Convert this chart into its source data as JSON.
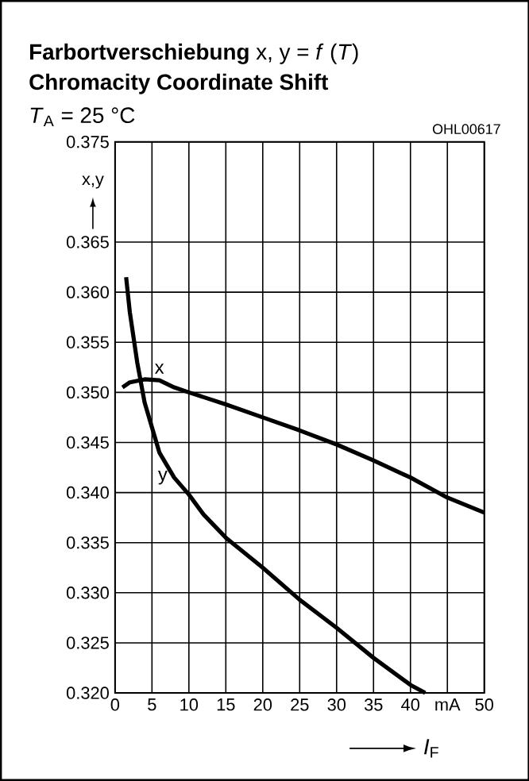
{
  "chart_data": {
    "type": "line",
    "title": "**Farbortverschiebung** x, y = *f* (*T*)",
    "subtitle": "Chromacity Coordinate Shift",
    "xlabel": "*I*$_{F}$",
    "ylabel": "x,y",
    "annotations": [
      "*T*$_{A}$ = 25 °C",
      "OHL00617"
    ],
    "xlim": [
      0,
      50
    ],
    "ylim": [
      0.32,
      0.375
    ],
    "xticks": [
      0,
      5,
      10,
      15,
      20,
      25,
      30,
      35,
      40,
      {
        "value": 45,
        "label": "mA"
      },
      50
    ],
    "yticks": [
      {
        "value": 0.32,
        "label": "0.320"
      },
      {
        "value": 0.325,
        "label": "0.325"
      },
      {
        "value": 0.33,
        "label": "0.330"
      },
      {
        "value": 0.335,
        "label": "0.335"
      },
      {
        "value": 0.34,
        "label": "0.340"
      },
      {
        "value": 0.345,
        "label": "0.345"
      },
      {
        "value": 0.35,
        "label": "0.350"
      },
      {
        "value": 0.355,
        "label": "0.355"
      },
      {
        "value": 0.36,
        "label": "0.360"
      },
      {
        "value": 0.365,
        "label": "0.365"
      },
      {
        "value": 0.375,
        "label": "0.375"
      }
    ],
    "grid": true,
    "legend": false,
    "marker": "none",
    "line_style": "solid",
    "series": [
      {
        "name": "x",
        "color": "#000000",
        "x": [
          1,
          2,
          4,
          6,
          8,
          10,
          15,
          20,
          25,
          30,
          35,
          40,
          45,
          50
        ],
        "values": [
          0.3505,
          0.351,
          0.3513,
          0.3512,
          0.3505,
          0.35,
          0.3488,
          0.3475,
          0.3462,
          0.3448,
          0.3432,
          0.3415,
          0.3395,
          0.338
        ]
      },
      {
        "name": "y",
        "color": "#000000",
        "x": [
          1.5,
          2,
          3,
          4,
          5,
          6,
          8,
          10,
          12,
          15,
          20,
          25,
          30,
          35,
          40,
          42
        ],
        "values": [
          0.3615,
          0.358,
          0.353,
          0.349,
          0.3465,
          0.344,
          0.3415,
          0.3398,
          0.3378,
          0.3355,
          0.3325,
          0.3293,
          0.3265,
          0.3235,
          0.3208,
          0.32
        ]
      }
    ]
  }
}
